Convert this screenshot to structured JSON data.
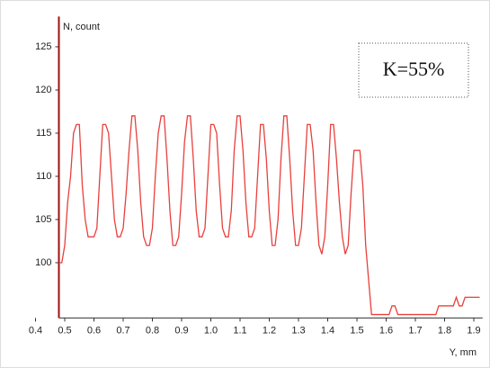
{
  "chart_data": {
    "type": "line",
    "x_label": "Y, mm",
    "y_label": "N, count",
    "annotation": "K=55%",
    "x": [
      0.48,
      0.49,
      0.5,
      0.51,
      0.52,
      0.53,
      0.54,
      0.55,
      0.56,
      0.57,
      0.58,
      0.59,
      0.6,
      0.61,
      0.62,
      0.63,
      0.64,
      0.65,
      0.66,
      0.67,
      0.68,
      0.69,
      0.7,
      0.71,
      0.72,
      0.73,
      0.74,
      0.75,
      0.76,
      0.77,
      0.78,
      0.79,
      0.8,
      0.81,
      0.82,
      0.83,
      0.84,
      0.85,
      0.86,
      0.87,
      0.88,
      0.89,
      0.9,
      0.91,
      0.92,
      0.93,
      0.94,
      0.95,
      0.96,
      0.97,
      0.98,
      0.99,
      1.0,
      1.01,
      1.02,
      1.03,
      1.04,
      1.05,
      1.06,
      1.07,
      1.08,
      1.09,
      1.1,
      1.11,
      1.12,
      1.13,
      1.14,
      1.15,
      1.16,
      1.17,
      1.18,
      1.19,
      1.2,
      1.21,
      1.22,
      1.23,
      1.24,
      1.25,
      1.26,
      1.27,
      1.28,
      1.29,
      1.3,
      1.31,
      1.32,
      1.33,
      1.34,
      1.35,
      1.36,
      1.37,
      1.38,
      1.39,
      1.4,
      1.41,
      1.42,
      1.43,
      1.44,
      1.45,
      1.46,
      1.47,
      1.48,
      1.49,
      1.5,
      1.51,
      1.52,
      1.53,
      1.54,
      1.55,
      1.56,
      1.57,
      1.58,
      1.59,
      1.6,
      1.61,
      1.62,
      1.63,
      1.64,
      1.65,
      1.66,
      1.67,
      1.68,
      1.69,
      1.7,
      1.71,
      1.72,
      1.73,
      1.74,
      1.75,
      1.76,
      1.77,
      1.78,
      1.79,
      1.8,
      1.81,
      1.82,
      1.83,
      1.84,
      1.85,
      1.86,
      1.87,
      1.88,
      1.89,
      1.9,
      1.91,
      1.92
    ],
    "values": [
      100,
      100,
      102,
      107,
      110,
      115,
      116,
      116,
      109,
      105,
      103,
      103,
      103,
      104,
      110,
      116,
      116,
      115,
      110,
      105,
      103,
      103,
      104,
      108,
      113,
      117,
      117,
      113,
      107,
      103,
      102,
      102,
      104,
      110,
      115,
      117,
      117,
      112,
      106,
      102,
      102,
      103,
      108,
      114,
      117,
      117,
      112,
      106,
      103,
      103,
      104,
      110,
      116,
      116,
      115,
      109,
      104,
      103,
      103,
      106,
      113,
      117,
      117,
      113,
      107,
      103,
      103,
      104,
      110,
      116,
      116,
      112,
      106,
      102,
      102,
      105,
      112,
      117,
      117,
      112,
      106,
      102,
      102,
      104,
      110,
      116,
      116,
      113,
      107,
      102,
      101,
      103,
      109,
      116,
      116,
      112,
      107,
      103,
      101,
      102,
      108,
      113,
      113,
      113,
      109,
      102,
      98,
      94,
      94,
      94,
      94,
      94,
      94,
      94,
      95,
      95,
      94,
      94,
      94,
      94,
      94,
      94,
      94,
      94,
      94,
      94,
      94,
      94,
      94,
      94,
      95,
      95,
      95,
      95,
      95,
      95,
      96,
      95,
      95,
      96,
      96,
      96,
      96,
      96,
      96
    ],
    "color": "#e8403c",
    "xlim": [
      0.48,
      1.93
    ],
    "ylim": [
      93.6,
      128.5
    ],
    "xticks": [
      0.4,
      0.5,
      0.6,
      0.7,
      0.8,
      0.9,
      {
        "value": 1,
        "label": "1.0"
      },
      1.1,
      1.2,
      1.3,
      1.4,
      1.5,
      1.6,
      1.7,
      1.8,
      1.9
    ],
    "yticks": [
      100,
      105,
      110,
      115,
      120,
      125
    ]
  }
}
